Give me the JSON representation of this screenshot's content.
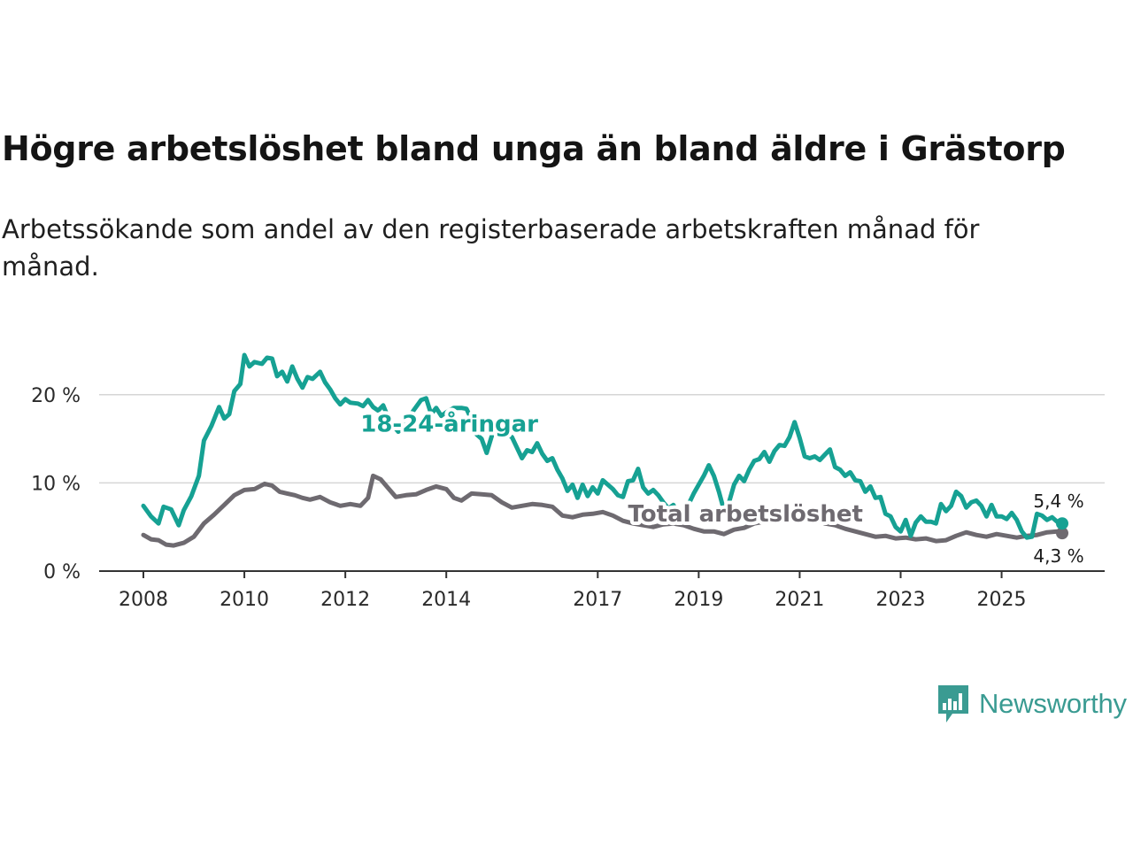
{
  "header": {
    "title": "Högre arbetslöshet bland unga än bland äldre i Grästorp",
    "subtitle": "Arbetssökande som andel av den registerbaserade arbetskraften månad för månad."
  },
  "brand": {
    "name": "Newsworthy",
    "icon": "newsworthy-logo-icon",
    "color": "#3a9b92"
  },
  "chart_data": {
    "type": "line",
    "title": "Högre arbetslöshet bland unga än bland äldre i Grästorp",
    "xlabel": "",
    "ylabel": "",
    "xlim": [
      2008,
      2026.2
    ],
    "ylim": [
      0,
      25
    ],
    "grid": true,
    "y_ticks": [
      {
        "value": 0,
        "label": "0 %"
      },
      {
        "value": 10,
        "label": "10 %"
      },
      {
        "value": 20,
        "label": "20 %"
      }
    ],
    "x_ticks": [
      {
        "value": 2008,
        "label": "2008"
      },
      {
        "value": 2010,
        "label": "2010"
      },
      {
        "value": 2012,
        "label": "2012"
      },
      {
        "value": 2014,
        "label": "2014"
      },
      {
        "value": 2017,
        "label": "2017"
      },
      {
        "value": 2019,
        "label": "2019"
      },
      {
        "value": 2021,
        "label": "2021"
      },
      {
        "value": 2023,
        "label": "2023"
      },
      {
        "value": 2025,
        "label": "2025"
      }
    ],
    "series": [
      {
        "name": "18-24-åringar",
        "color": "#16a193",
        "label_at": [
          2012.3,
          15.8
        ],
        "end_label": "5,4 %",
        "points": [
          [
            2008.0,
            7.4
          ],
          [
            2008.15,
            6.2
          ],
          [
            2008.3,
            5.4
          ],
          [
            2008.4,
            7.3
          ],
          [
            2008.55,
            7.0
          ],
          [
            2008.7,
            5.2
          ],
          [
            2008.8,
            6.9
          ],
          [
            2008.95,
            8.5
          ],
          [
            2009.1,
            10.8
          ],
          [
            2009.2,
            14.8
          ],
          [
            2009.35,
            16.5
          ],
          [
            2009.5,
            18.6
          ],
          [
            2009.6,
            17.3
          ],
          [
            2009.7,
            17.8
          ],
          [
            2009.8,
            20.4
          ],
          [
            2009.92,
            21.2
          ],
          [
            2010.0,
            24.5
          ],
          [
            2010.1,
            23.2
          ],
          [
            2010.2,
            23.7
          ],
          [
            2010.35,
            23.5
          ],
          [
            2010.45,
            24.2
          ],
          [
            2010.55,
            24.1
          ],
          [
            2010.65,
            22.1
          ],
          [
            2010.75,
            22.6
          ],
          [
            2010.85,
            21.5
          ],
          [
            2010.95,
            23.2
          ],
          [
            2011.05,
            21.8
          ],
          [
            2011.15,
            20.8
          ],
          [
            2011.25,
            22.0
          ],
          [
            2011.35,
            21.8
          ],
          [
            2011.5,
            22.6
          ],
          [
            2011.6,
            21.4
          ],
          [
            2011.7,
            20.6
          ],
          [
            2011.8,
            19.6
          ],
          [
            2011.9,
            18.9
          ],
          [
            2012.0,
            19.5
          ],
          [
            2012.1,
            19.1
          ],
          [
            2012.25,
            19.0
          ],
          [
            2012.35,
            18.7
          ],
          [
            2012.45,
            19.4
          ],
          [
            2012.55,
            18.6
          ],
          [
            2012.65,
            18.2
          ],
          [
            2012.75,
            18.8
          ],
          [
            2012.85,
            17.4
          ],
          [
            2012.95,
            16.5
          ],
          [
            2013.05,
            15.8
          ],
          [
            2013.2,
            16.8
          ],
          [
            2013.35,
            18.2
          ],
          [
            2013.5,
            19.4
          ],
          [
            2013.6,
            19.6
          ],
          [
            2013.7,
            17.8
          ],
          [
            2013.8,
            18.5
          ],
          [
            2013.9,
            17.6
          ],
          [
            2014.0,
            18.0
          ],
          [
            2014.15,
            18.5
          ],
          [
            2014.3,
            18.5
          ],
          [
            2014.4,
            18.4
          ],
          [
            2014.5,
            17.2
          ],
          [
            2014.6,
            15.5
          ],
          [
            2014.7,
            15.0
          ],
          [
            2014.8,
            13.4
          ],
          [
            2014.9,
            15.3
          ],
          [
            2015.0,
            15.8
          ],
          [
            2015.15,
            15.6
          ],
          [
            2015.3,
            15.2
          ],
          [
            2015.4,
            14.0
          ],
          [
            2015.5,
            12.8
          ],
          [
            2015.6,
            13.7
          ],
          [
            2015.7,
            13.5
          ],
          [
            2015.8,
            14.5
          ],
          [
            2015.9,
            13.3
          ],
          [
            2016.0,
            12.5
          ],
          [
            2016.1,
            12.8
          ],
          [
            2016.2,
            11.5
          ],
          [
            2016.3,
            10.5
          ],
          [
            2016.4,
            9.1
          ],
          [
            2016.5,
            9.8
          ],
          [
            2016.6,
            8.3
          ],
          [
            2016.7,
            9.8
          ],
          [
            2016.8,
            8.5
          ],
          [
            2016.9,
            9.5
          ],
          [
            2017.0,
            8.8
          ],
          [
            2017.1,
            10.3
          ],
          [
            2017.2,
            9.8
          ],
          [
            2017.3,
            9.3
          ],
          [
            2017.4,
            8.6
          ],
          [
            2017.5,
            8.4
          ],
          [
            2017.6,
            10.2
          ],
          [
            2017.7,
            10.3
          ],
          [
            2017.8,
            11.6
          ],
          [
            2017.9,
            9.5
          ],
          [
            2018.0,
            8.8
          ],
          [
            2018.1,
            9.2
          ],
          [
            2018.2,
            8.6
          ],
          [
            2018.3,
            7.8
          ],
          [
            2018.4,
            7.1
          ],
          [
            2018.5,
            7.5
          ],
          [
            2018.6,
            6.2
          ],
          [
            2018.7,
            5.8
          ],
          [
            2018.8,
            7.6
          ],
          [
            2018.9,
            8.8
          ],
          [
            2019.0,
            9.8
          ],
          [
            2019.1,
            10.8
          ],
          [
            2019.2,
            12.0
          ],
          [
            2019.3,
            10.8
          ],
          [
            2019.4,
            9.0
          ],
          [
            2019.5,
            6.9
          ],
          [
            2019.6,
            7.8
          ],
          [
            2019.7,
            9.8
          ],
          [
            2019.8,
            10.8
          ],
          [
            2019.9,
            10.2
          ],
          [
            2020.0,
            11.5
          ],
          [
            2020.1,
            12.5
          ],
          [
            2020.2,
            12.7
          ],
          [
            2020.3,
            13.5
          ],
          [
            2020.4,
            12.4
          ],
          [
            2020.5,
            13.6
          ],
          [
            2020.6,
            14.3
          ],
          [
            2020.7,
            14.2
          ],
          [
            2020.8,
            15.2
          ],
          [
            2020.9,
            16.9
          ],
          [
            2021.0,
            15.1
          ],
          [
            2021.1,
            13.0
          ],
          [
            2021.2,
            12.8
          ],
          [
            2021.3,
            13.0
          ],
          [
            2021.4,
            12.6
          ],
          [
            2021.5,
            13.2
          ],
          [
            2021.6,
            13.8
          ],
          [
            2021.7,
            11.8
          ],
          [
            2021.8,
            11.5
          ],
          [
            2021.9,
            10.8
          ],
          [
            2022.0,
            11.2
          ],
          [
            2022.1,
            10.3
          ],
          [
            2022.2,
            10.2
          ],
          [
            2022.3,
            9.0
          ],
          [
            2022.4,
            9.6
          ],
          [
            2022.5,
            8.3
          ],
          [
            2022.6,
            8.4
          ],
          [
            2022.7,
            6.5
          ],
          [
            2022.8,
            6.2
          ],
          [
            2022.9,
            5.0
          ],
          [
            2023.0,
            4.5
          ],
          [
            2023.1,
            5.8
          ],
          [
            2023.2,
            4.0
          ],
          [
            2023.3,
            5.5
          ],
          [
            2023.4,
            6.2
          ],
          [
            2023.5,
            5.6
          ],
          [
            2023.6,
            5.6
          ],
          [
            2023.7,
            5.4
          ],
          [
            2023.8,
            7.6
          ],
          [
            2023.9,
            6.8
          ],
          [
            2024.0,
            7.4
          ],
          [
            2024.1,
            9.0
          ],
          [
            2024.2,
            8.5
          ],
          [
            2024.3,
            7.2
          ],
          [
            2024.4,
            7.8
          ],
          [
            2024.5,
            8.0
          ],
          [
            2024.6,
            7.4
          ],
          [
            2024.7,
            6.2
          ],
          [
            2024.8,
            7.5
          ],
          [
            2024.9,
            6.2
          ],
          [
            2025.0,
            6.2
          ],
          [
            2025.1,
            5.9
          ],
          [
            2025.2,
            6.6
          ],
          [
            2025.3,
            5.8
          ],
          [
            2025.4,
            4.5
          ],
          [
            2025.5,
            3.8
          ],
          [
            2025.6,
            3.9
          ],
          [
            2025.7,
            6.5
          ],
          [
            2025.8,
            6.3
          ],
          [
            2025.9,
            5.8
          ],
          [
            2026.0,
            6.1
          ],
          [
            2026.1,
            5.6
          ],
          [
            2026.2,
            5.4
          ]
        ]
      },
      {
        "name": "Total arbetslöshet",
        "color": "#6e6a70",
        "label_at": [
          2017.6,
          5.6
        ],
        "end_label": "4,3 %",
        "points": [
          [
            2008.0,
            4.1
          ],
          [
            2008.15,
            3.6
          ],
          [
            2008.3,
            3.5
          ],
          [
            2008.45,
            3.0
          ],
          [
            2008.6,
            2.9
          ],
          [
            2008.8,
            3.2
          ],
          [
            2009.0,
            3.9
          ],
          [
            2009.2,
            5.4
          ],
          [
            2009.4,
            6.4
          ],
          [
            2009.6,
            7.5
          ],
          [
            2009.8,
            8.6
          ],
          [
            2010.0,
            9.2
          ],
          [
            2010.2,
            9.3
          ],
          [
            2010.4,
            9.9
          ],
          [
            2010.55,
            9.7
          ],
          [
            2010.7,
            9.0
          ],
          [
            2010.85,
            8.8
          ],
          [
            2011.0,
            8.6
          ],
          [
            2011.15,
            8.3
          ],
          [
            2011.3,
            8.1
          ],
          [
            2011.5,
            8.4
          ],
          [
            2011.7,
            7.8
          ],
          [
            2011.9,
            7.4
          ],
          [
            2012.1,
            7.6
          ],
          [
            2012.3,
            7.4
          ],
          [
            2012.45,
            8.3
          ],
          [
            2012.55,
            10.8
          ],
          [
            2012.7,
            10.4
          ],
          [
            2012.85,
            9.4
          ],
          [
            2013.0,
            8.4
          ],
          [
            2013.2,
            8.6
          ],
          [
            2013.4,
            8.7
          ],
          [
            2013.6,
            9.2
          ],
          [
            2013.8,
            9.6
          ],
          [
            2014.0,
            9.3
          ],
          [
            2014.15,
            8.3
          ],
          [
            2014.3,
            8.0
          ],
          [
            2014.5,
            8.8
          ],
          [
            2014.7,
            8.7
          ],
          [
            2014.9,
            8.6
          ],
          [
            2015.1,
            7.8
          ],
          [
            2015.3,
            7.2
          ],
          [
            2015.5,
            7.4
          ],
          [
            2015.7,
            7.6
          ],
          [
            2015.9,
            7.5
          ],
          [
            2016.1,
            7.3
          ],
          [
            2016.3,
            6.3
          ],
          [
            2016.5,
            6.1
          ],
          [
            2016.7,
            6.4
          ],
          [
            2016.9,
            6.5
          ],
          [
            2017.1,
            6.7
          ],
          [
            2017.3,
            6.3
          ],
          [
            2017.5,
            5.7
          ],
          [
            2017.7,
            5.4
          ],
          [
            2017.9,
            5.2
          ],
          [
            2018.1,
            5.0
          ],
          [
            2018.3,
            5.3
          ],
          [
            2018.5,
            5.4
          ],
          [
            2018.7,
            5.2
          ],
          [
            2018.9,
            4.8
          ],
          [
            2019.1,
            4.5
          ],
          [
            2019.3,
            4.5
          ],
          [
            2019.5,
            4.2
          ],
          [
            2019.7,
            4.7
          ],
          [
            2019.9,
            4.9
          ],
          [
            2020.1,
            5.4
          ],
          [
            2020.3,
            5.6
          ],
          [
            2020.5,
            6.0
          ],
          [
            2020.7,
            6.3
          ],
          [
            2020.9,
            6.4
          ],
          [
            2021.1,
            6.2
          ],
          [
            2021.3,
            5.8
          ],
          [
            2021.5,
            5.4
          ],
          [
            2021.7,
            5.2
          ],
          [
            2021.9,
            4.8
          ],
          [
            2022.1,
            4.5
          ],
          [
            2022.3,
            4.2
          ],
          [
            2022.5,
            3.9
          ],
          [
            2022.7,
            4.0
          ],
          [
            2022.9,
            3.7
          ],
          [
            2023.1,
            3.8
          ],
          [
            2023.3,
            3.6
          ],
          [
            2023.5,
            3.7
          ],
          [
            2023.7,
            3.4
          ],
          [
            2023.9,
            3.5
          ],
          [
            2024.1,
            4.0
          ],
          [
            2024.3,
            4.4
          ],
          [
            2024.5,
            4.1
          ],
          [
            2024.7,
            3.9
          ],
          [
            2024.9,
            4.2
          ],
          [
            2025.1,
            4.0
          ],
          [
            2025.3,
            3.8
          ],
          [
            2025.5,
            4.0
          ],
          [
            2025.7,
            4.1
          ],
          [
            2025.9,
            4.4
          ],
          [
            2026.1,
            4.5
          ],
          [
            2026.2,
            4.3
          ]
        ]
      }
    ]
  }
}
